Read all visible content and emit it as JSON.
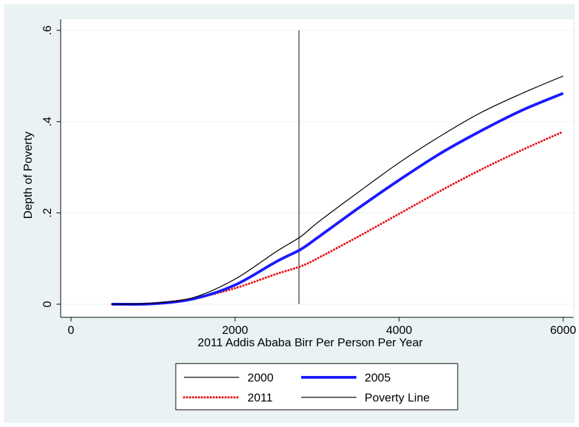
{
  "chart_data": {
    "type": "line",
    "xlabel": "2011 Addis Ababa Birr Per Person Per Year",
    "ylabel": "Depth of Poverty",
    "xlim": [
      0,
      6000
    ],
    "ylim": [
      0,
      0.6
    ],
    "x_ticks": [
      0,
      2000,
      4000,
      6000
    ],
    "x_tick_labels": [
      "0",
      "2000",
      "4000",
      "6000"
    ],
    "y_ticks": [
      0,
      0.2,
      0.4,
      0.6
    ],
    "y_tick_labels": [
      "0",
      ".2",
      ".4",
      ".6"
    ],
    "grid": "horizontal",
    "legend_position": "bottom",
    "x": [
      500,
      1000,
      1500,
      2000,
      2500,
      2800,
      3000,
      3500,
      4000,
      4500,
      5000,
      5500,
      6000
    ],
    "series": [
      {
        "name": "2000",
        "color": "#000000",
        "style": "thin-solid",
        "values": [
          0,
          0.002,
          0.015,
          0.055,
          0.115,
          0.148,
          0.178,
          0.245,
          0.31,
          0.368,
          0.42,
          0.462,
          0.5
        ]
      },
      {
        "name": "2005",
        "color": "#1a1aff",
        "style": "thick-solid",
        "values": [
          0,
          0.001,
          0.012,
          0.042,
          0.093,
          0.12,
          0.145,
          0.21,
          0.272,
          0.33,
          0.38,
          0.425,
          0.462
        ]
      },
      {
        "name": "2011",
        "color": "#e8141b",
        "style": "dotted",
        "values": [
          0,
          0.002,
          0.013,
          0.035,
          0.066,
          0.083,
          0.1,
          0.148,
          0.198,
          0.248,
          0.295,
          0.338,
          0.378
        ]
      }
    ],
    "reference_lines": [
      {
        "name": "Poverty Line",
        "orientation": "vertical",
        "x": 2780,
        "color": "#000000"
      }
    ]
  }
}
